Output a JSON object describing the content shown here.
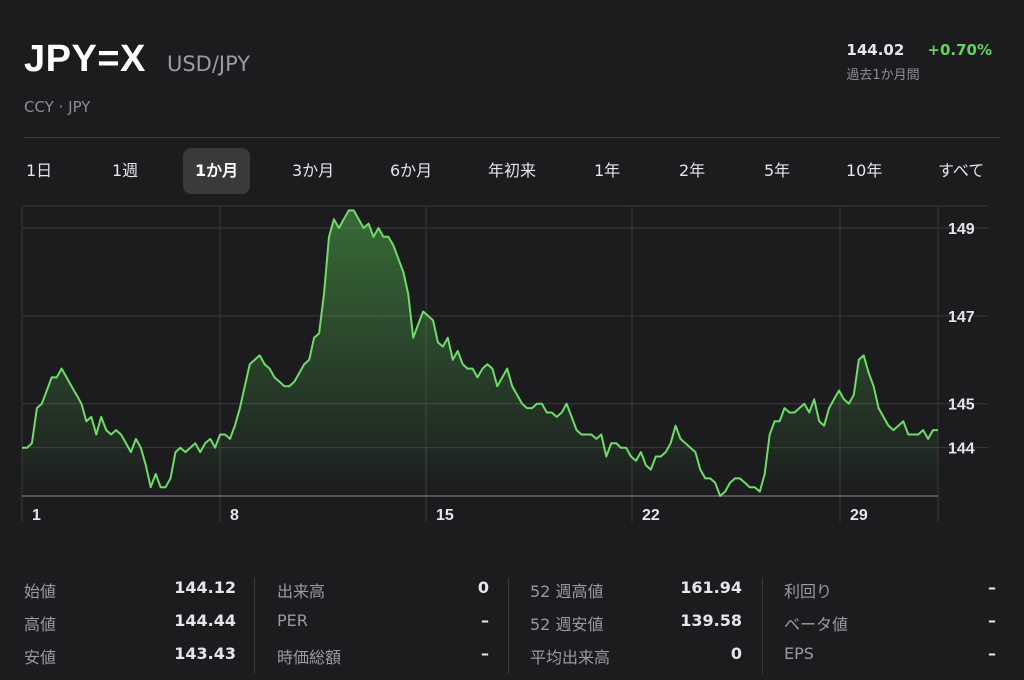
{
  "header": {
    "symbol": "JPY=X",
    "pair": "USD/JPY",
    "exchange": "CCY · JPY",
    "price": "144.02",
    "change": "+0.70%",
    "period": "過去1か月間"
  },
  "tabs": [
    {
      "label": "1日",
      "active": false
    },
    {
      "label": "1週",
      "active": false
    },
    {
      "label": "1か月",
      "active": true
    },
    {
      "label": "3か月",
      "active": false
    },
    {
      "label": "6か月",
      "active": false
    },
    {
      "label": "年初来",
      "active": false
    },
    {
      "label": "1年",
      "active": false
    },
    {
      "label": "2年",
      "active": false
    },
    {
      "label": "5年",
      "active": false
    },
    {
      "label": "10年",
      "active": false
    },
    {
      "label": "すべて",
      "active": false
    }
  ],
  "colors": {
    "line": "#6fdc6a",
    "grid": "#3a3a3c",
    "positive": "#5fd75a"
  },
  "chart_data": {
    "type": "area",
    "x_ticks": [
      "1",
      "8",
      "15",
      "22",
      "29"
    ],
    "y_ticks": [
      149,
      147,
      145,
      144
    ],
    "series": [
      {
        "values": [
          144.0,
          144.0,
          144.1,
          144.9,
          145.0,
          145.3,
          145.6,
          145.6,
          145.8,
          145.6,
          145.4,
          145.2,
          145.0,
          144.6,
          144.7,
          144.3,
          144.7,
          144.4,
          144.3,
          144.4,
          144.3,
          144.1,
          143.9,
          144.2,
          144.0,
          143.6,
          143.1,
          143.4,
          143.1,
          143.1,
          143.3,
          143.9,
          144.0,
          143.9,
          144.0,
          144.1,
          143.9,
          144.1,
          144.2,
          144.0,
          144.3,
          144.3,
          144.2,
          144.5,
          144.9,
          145.4,
          145.9,
          146.0,
          146.1,
          145.9,
          145.8,
          145.6,
          145.5,
          145.4,
          145.4,
          145.5,
          145.7,
          145.9,
          146.0,
          146.5,
          146.6,
          147.5,
          148.8,
          149.2,
          149.0,
          149.2,
          149.4,
          149.4,
          149.2,
          149.0,
          149.1,
          148.8,
          149.0,
          148.8,
          148.8,
          148.6,
          148.3,
          148.0,
          147.5,
          146.5,
          146.8,
          147.1,
          147.0,
          146.9,
          146.4,
          146.3,
          146.5,
          146.0,
          146.2,
          145.9,
          145.8,
          145.8,
          145.6,
          145.8,
          145.9,
          145.8,
          145.4,
          145.6,
          145.8,
          145.4,
          145.2,
          145.0,
          144.9,
          144.9,
          145.0,
          145.0,
          144.8,
          144.8,
          144.7,
          144.8,
          145.0,
          144.7,
          144.4,
          144.3,
          144.3,
          144.3,
          144.2,
          144.3,
          143.8,
          144.1,
          144.1,
          144.0,
          144.0,
          143.8,
          143.7,
          143.9,
          143.6,
          143.5,
          143.8,
          143.8,
          143.9,
          144.1,
          144.5,
          144.2,
          144.1,
          144.0,
          143.9,
          143.5,
          143.3,
          143.3,
          143.2,
          142.9,
          143.0,
          143.2,
          143.3,
          143.3,
          143.2,
          143.1,
          143.1,
          143.0,
          143.4,
          144.3,
          144.6,
          144.6,
          144.9,
          144.8,
          144.8,
          144.9,
          145.0,
          144.8,
          145.1,
          144.6,
          144.5,
          144.9,
          145.1,
          145.3,
          145.1,
          145.0,
          145.2,
          146.0,
          146.1,
          145.7,
          145.4,
          144.9,
          144.7,
          144.5,
          144.4,
          144.5,
          144.6,
          144.3,
          144.3,
          144.3,
          144.4,
          144.2,
          144.4,
          144.4
        ]
      }
    ],
    "ylim": [
      142.9,
      149.5
    ]
  },
  "stats": [
    [
      {
        "label": "始値",
        "value": "144.12"
      },
      {
        "label": "高値",
        "value": "144.44"
      },
      {
        "label": "安値",
        "value": "143.43"
      }
    ],
    [
      {
        "label": "出来高",
        "value": "0"
      },
      {
        "label": "PER",
        "value": "–"
      },
      {
        "label": "時価総額",
        "value": "–"
      }
    ],
    [
      {
        "label": "52 週高値",
        "value": "161.94"
      },
      {
        "label": "52 週安値",
        "value": "139.58"
      },
      {
        "label": "平均出来高",
        "value": "0"
      }
    ],
    [
      {
        "label": "利回り",
        "value": "–"
      },
      {
        "label": "ベータ値",
        "value": "–"
      },
      {
        "label": "EPS",
        "value": "–"
      }
    ]
  ]
}
